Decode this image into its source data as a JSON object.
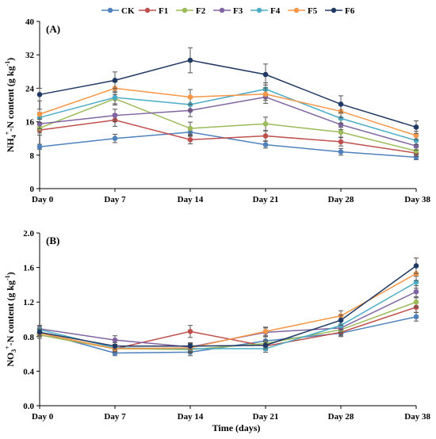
{
  "legend": [
    "CK",
    "F1",
    "F2",
    "F3",
    "F4",
    "F5",
    "F6"
  ],
  "colors": {
    "CK": "#4f81bd",
    "F1": "#c0504d",
    "F2": "#9bbb59",
    "F3": "#8064a2",
    "F4": "#4bacc6",
    "F5": "#f79646",
    "F6": "#1f3864"
  },
  "xlabel": "Time (days)",
  "chart_data": [
    {
      "type": "line",
      "panel_label": "(A)",
      "ylabel_main": "NH",
      "ylabel_sub": "4",
      "ylabel_sup": "+",
      "ylabel_rest": "-N content (g kg",
      "ylabel_unit_sup": "-1",
      "ylabel_close": ")",
      "categories": [
        "Day 0",
        "Day 7",
        "Day 14",
        "Day 21",
        "Day 28",
        "Day 38"
      ],
      "ylim": [
        0,
        40
      ],
      "yticks": [
        "0",
        "8",
        "16",
        "24",
        "32",
        "40"
      ],
      "yticks_values": [
        0,
        8,
        16,
        24,
        32,
        40
      ],
      "series": [
        {
          "name": "CK",
          "values": [
            10.0,
            12.0,
            13.5,
            10.5,
            8.8,
            7.5
          ],
          "errors": [
            0.6,
            1.0,
            1.0,
            0.8,
            0.8,
            0.6
          ]
        },
        {
          "name": "F1",
          "values": [
            14.0,
            16.4,
            11.7,
            12.6,
            11.2,
            8.5
          ],
          "errors": [
            1.2,
            1.5,
            1.0,
            1.2,
            1.0,
            0.8
          ]
        },
        {
          "name": "F2",
          "values": [
            14.5,
            21.5,
            14.4,
            15.5,
            13.5,
            9.0
          ],
          "errors": [
            1.2,
            1.5,
            1.5,
            1.6,
            1.2,
            0.8
          ]
        },
        {
          "name": "F3",
          "values": [
            15.5,
            17.5,
            18.7,
            21.9,
            15.3,
            10.2
          ],
          "errors": [
            1.2,
            1.5,
            1.5,
            1.5,
            1.2,
            1.0
          ]
        },
        {
          "name": "F4",
          "values": [
            17.0,
            21.8,
            20.1,
            23.8,
            16.8,
            11.5
          ],
          "errors": [
            1.2,
            1.5,
            1.5,
            1.5,
            1.2,
            1.0
          ]
        },
        {
          "name": "F5",
          "values": [
            17.8,
            24.0,
            21.9,
            22.6,
            18.5,
            12.7
          ],
          "errors": [
            1.2,
            1.5,
            1.8,
            1.5,
            1.5,
            1.0
          ]
        },
        {
          "name": "F6",
          "values": [
            22.5,
            25.9,
            30.7,
            27.3,
            20.2,
            14.7
          ],
          "errors": [
            1.5,
            2.0,
            3.0,
            2.5,
            2.0,
            1.5
          ]
        }
      ]
    },
    {
      "type": "line",
      "panel_label": "(B)",
      "ylabel_main": "NO",
      "ylabel_sub": "3",
      "ylabel_sup": "+",
      "ylabel_rest": "-N content (g kg",
      "ylabel_unit_sup": "-1",
      "ylabel_close": ")",
      "categories": [
        "Day 0",
        "Day 7",
        "Day 14",
        "Day 21",
        "Day 28",
        "Day 38"
      ],
      "ylim": [
        0,
        2
      ],
      "yticks": [
        "0.0",
        "0.4",
        "0.8",
        "1.2",
        "1.6",
        "2.0"
      ],
      "yticks_values": [
        0,
        0.4,
        0.8,
        1.2,
        1.6,
        2.0
      ],
      "series": [
        {
          "name": "CK",
          "values": [
            0.85,
            0.61,
            0.62,
            0.75,
            0.84,
            1.03
          ],
          "errors": [
            0.04,
            0.03,
            0.04,
            0.05,
            0.04,
            0.05
          ]
        },
        {
          "name": "F1",
          "values": [
            0.82,
            0.66,
            0.86,
            0.69,
            0.85,
            1.14
          ],
          "errors": [
            0.04,
            0.04,
            0.07,
            0.05,
            0.04,
            0.06
          ]
        },
        {
          "name": "F2",
          "values": [
            0.82,
            0.66,
            0.65,
            0.72,
            0.88,
            1.2
          ],
          "errors": [
            0.04,
            0.04,
            0.04,
            0.04,
            0.05,
            0.06
          ]
        },
        {
          "name": "F3",
          "values": [
            0.89,
            0.76,
            0.68,
            0.85,
            0.9,
            1.32
          ],
          "errors": [
            0.04,
            0.05,
            0.04,
            0.05,
            0.05,
            0.07
          ]
        },
        {
          "name": "F4",
          "values": [
            0.88,
            0.67,
            0.66,
            0.66,
            0.93,
            1.43
          ],
          "errors": [
            0.04,
            0.04,
            0.04,
            0.04,
            0.05,
            0.07
          ]
        },
        {
          "name": "F5",
          "values": [
            0.84,
            0.66,
            0.67,
            0.86,
            1.04,
            1.53
          ],
          "errors": [
            0.04,
            0.04,
            0.04,
            0.05,
            0.06,
            0.08
          ]
        },
        {
          "name": "F6",
          "values": [
            0.85,
            0.69,
            0.69,
            0.7,
            0.99,
            1.62
          ],
          "errors": [
            0.04,
            0.04,
            0.04,
            0.04,
            0.06,
            0.09
          ]
        }
      ]
    }
  ]
}
